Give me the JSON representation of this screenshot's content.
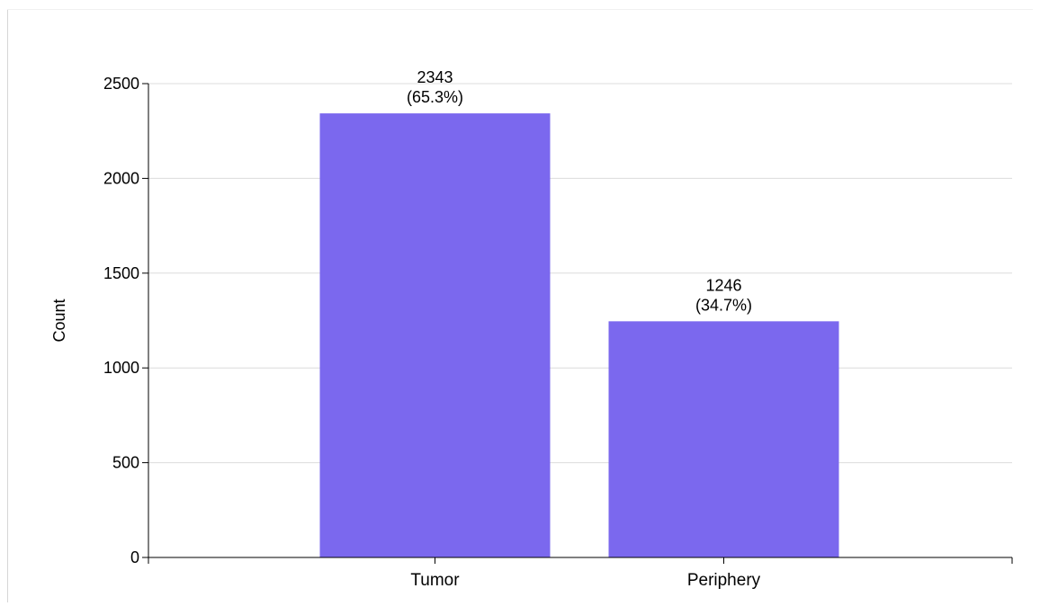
{
  "chart_data": {
    "type": "bar",
    "categories": [
      "Tumor",
      "Periphery"
    ],
    "values": [
      2343,
      1246
    ],
    "data_labels": [
      {
        "count": "2343",
        "percent": "(65.3%)"
      },
      {
        "count": "1246",
        "percent": "(34.7%)"
      }
    ],
    "title": "",
    "xlabel": "",
    "ylabel": "Count",
    "ylim": [
      0,
      2500
    ],
    "yticks": [
      0,
      500,
      1000,
      1500,
      2000,
      2500
    ],
    "grid": true,
    "bar_color": "#7b68ee"
  }
}
